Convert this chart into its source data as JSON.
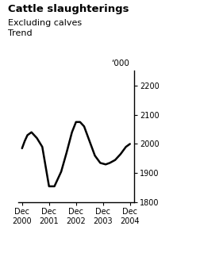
{
  "title": "Cattle slaughterings",
  "subtitle1": "Excluding calves",
  "subtitle2": "Trend",
  "ylabel_unit": "‘000",
  "x_labels": [
    "Dec\n2000",
    "Dec\n2001",
    "Dec\n2002",
    "Dec\n2003",
    "Dec\n2004"
  ],
  "x_positions": [
    0,
    1,
    2,
    3,
    4
  ],
  "ylim": [
    1800,
    2250
  ],
  "yticks": [
    1800,
    1900,
    2000,
    2100,
    2200
  ],
  "line_color": "#000000",
  "line_width": 1.8,
  "data_x": [
    0.0,
    0.1,
    0.2,
    0.35,
    0.55,
    0.75,
    1.0,
    1.2,
    1.45,
    1.65,
    1.85,
    2.0,
    2.15,
    2.3,
    2.5,
    2.7,
    2.9,
    3.1,
    3.25,
    3.45,
    3.65,
    3.85,
    4.0
  ],
  "data_y": [
    1985,
    2010,
    2030,
    2040,
    2020,
    1990,
    1855,
    1855,
    1905,
    1970,
    2040,
    2075,
    2075,
    2060,
    2010,
    1960,
    1935,
    1930,
    1935,
    1945,
    1965,
    1990,
    2000
  ]
}
